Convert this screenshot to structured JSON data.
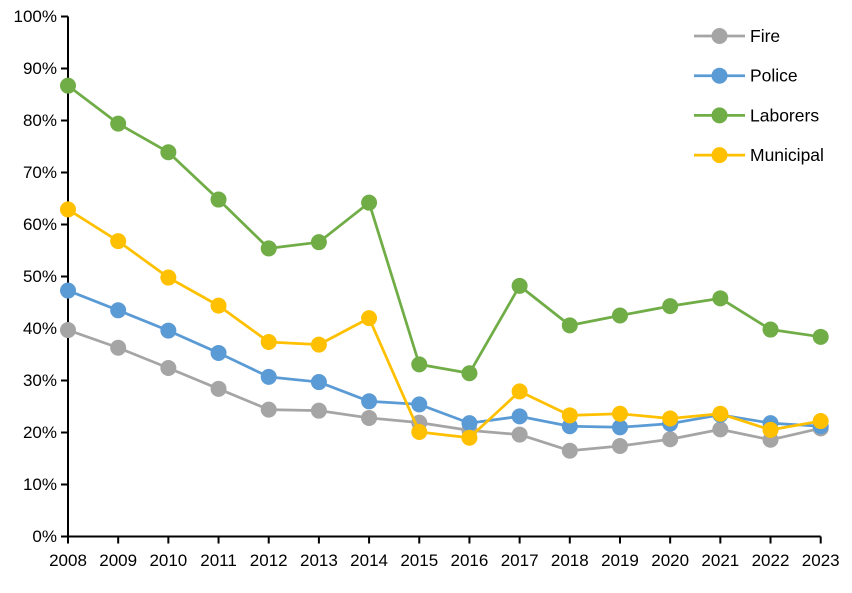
{
  "chart_data": {
    "type": "line",
    "title": "",
    "xlabel": "",
    "ylabel": "",
    "grid": false,
    "background_color": "#ffffff",
    "axis_color": "#000000",
    "legend_position": "top-right",
    "categories": [
      "2008",
      "2009",
      "2010",
      "2011",
      "2012",
      "2013",
      "2014",
      "2015",
      "2016",
      "2017",
      "2018",
      "2019",
      "2020",
      "2021",
      "2022",
      "2023"
    ],
    "y_axis": {
      "min": 0,
      "max": 100,
      "step": 10,
      "labels": [
        "0%",
        "10%",
        "20%",
        "30%",
        "40%",
        "50%",
        "60%",
        "70%",
        "80%",
        "90%",
        "100%"
      ]
    },
    "series": [
      {
        "name": "Fire",
        "color": "#A5A5A5",
        "values": [
          39.7,
          36.3,
          32.4,
          28.4,
          24.4,
          24.2,
          22.8,
          21.9,
          20.4,
          19.6,
          16.5,
          17.4,
          18.7,
          20.6,
          18.6,
          20.8
        ]
      },
      {
        "name": "Police",
        "color": "#5B9BD5",
        "values": [
          47.3,
          43.5,
          39.6,
          35.3,
          30.7,
          29.7,
          26.0,
          25.4,
          21.8,
          23.1,
          21.2,
          21.0,
          21.7,
          23.4,
          21.8,
          21.2
        ]
      },
      {
        "name": "Laborers",
        "color": "#70AD47",
        "values": [
          86.7,
          79.4,
          73.9,
          64.8,
          55.4,
          56.6,
          64.2,
          33.1,
          31.4,
          48.2,
          40.6,
          42.5,
          44.3,
          45.8,
          39.8,
          38.4
        ]
      },
      {
        "name": "Municipal",
        "color": "#FFC000",
        "values": [
          62.9,
          56.8,
          49.8,
          44.4,
          37.4,
          36.9,
          42.0,
          20.1,
          19.0,
          27.9,
          23.3,
          23.6,
          22.7,
          23.6,
          20.5,
          22.2
        ]
      }
    ]
  }
}
